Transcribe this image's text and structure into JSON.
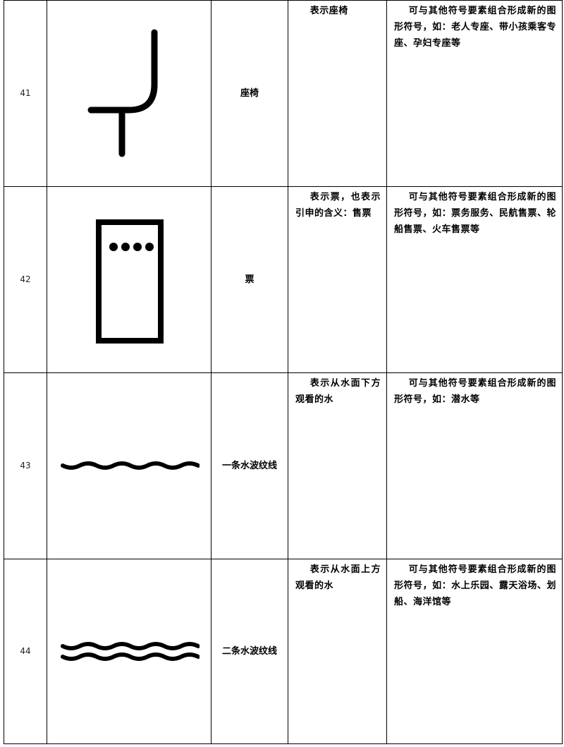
{
  "rows": [
    {
      "number": "41",
      "icon": "seat-icon",
      "name": "座椅",
      "meaning": "表示座椅",
      "note": "可与其他符号要素组合形成新的图形符号，如：老人专座、带小孩乘客专座、孕妇专座等"
    },
    {
      "number": "42",
      "icon": "ticket-icon",
      "name": "票",
      "meaning": "表示票，也表示引申的含义：售票",
      "note": "可与其他符号要素组合形成新的图形符号，如：票务服务、民航售票、轮船售票、火车售票等"
    },
    {
      "number": "43",
      "icon": "single-wave-icon",
      "name": "一条水波纹线",
      "meaning": "表示从水面下方观看的水",
      "note": "可与其他符号要素组合形成新的图形符号，如：潜水等"
    },
    {
      "number": "44",
      "icon": "double-wave-icon",
      "name": "二条水波纹线",
      "meaning": "表示从水面上方观看的水",
      "note": "可与其他符号要素组合形成新的图形符号，如：水上乐园、露天浴场、划船、海洋馆等"
    }
  ]
}
